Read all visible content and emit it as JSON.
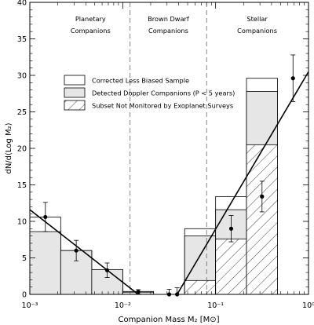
{
  "chart_data": {
    "type": "bar",
    "title": "",
    "xlabel": "Companion Mass M₂ [M⊙]",
    "ylabel": "dN/d(Log M₂)",
    "x_scale": "log",
    "xlim": [
      0.001,
      1
    ],
    "ylim": [
      0,
      40
    ],
    "x_ticks": [
      {
        "value": 0.001,
        "label": "10⁻³"
      },
      {
        "value": 0.01,
        "label": "10⁻²"
      },
      {
        "value": 0.1,
        "label": "10⁻¹"
      },
      {
        "value": 1,
        "label": "10⁰"
      }
    ],
    "y_ticks": [
      0,
      5,
      10,
      15,
      20,
      25,
      30,
      35,
      40
    ],
    "regions": [
      {
        "label_lines": [
          "Planetary",
          "Companions"
        ],
        "x": 0.0045
      },
      {
        "label_lines": [
          "Brown Dwarf",
          "Companions"
        ],
        "x": 0.031
      },
      {
        "label_lines": [
          "Stellar",
          "Companions"
        ],
        "x": 0.28
      }
    ],
    "boundaries": [
      0.012,
      0.08
    ],
    "bins": [
      {
        "x0": 0.001,
        "x1": 0.00215,
        "corrected": 10.6,
        "detected": 8.6,
        "unmonitored": 0
      },
      {
        "x0": 0.00215,
        "x1": 0.00464,
        "corrected": 6.0,
        "detected": 6.0,
        "unmonitored": 0
      },
      {
        "x0": 0.00464,
        "x1": 0.01,
        "corrected": 3.4,
        "detected": 3.4,
        "unmonitored": 0
      },
      {
        "x0": 0.01,
        "x1": 0.0215,
        "corrected": 0.4,
        "detected": 0.3,
        "unmonitored": 0
      },
      {
        "x0": 0.0215,
        "x1": 0.0464,
        "corrected": 0,
        "detected": 0,
        "unmonitored": 0
      },
      {
        "x0": 0.0464,
        "x1": 0.1,
        "corrected": 9.0,
        "detected": 8.0,
        "unmonitored": 1.9
      },
      {
        "x0": 0.1,
        "x1": 0.215,
        "corrected": 13.4,
        "detected": 11.6,
        "unmonitored": 7.6
      },
      {
        "x0": 0.215,
        "x1": 0.464,
        "corrected": 29.6,
        "detected": 27.8,
        "unmonitored": 20.5
      }
    ],
    "points": [
      {
        "x": 0.00147,
        "y": 10.6,
        "err": 2.0
      },
      {
        "x": 0.00316,
        "y": 6.0,
        "err": 1.4
      },
      {
        "x": 0.0068,
        "y": 3.3,
        "err": 1.0
      },
      {
        "x": 0.0147,
        "y": 0.35,
        "err": 0.3
      },
      {
        "x": 0.0316,
        "y": 0.0,
        "err": 0.7
      },
      {
        "x": 0.0385,
        "y": 0.0,
        "err": 0.9
      },
      {
        "x": 0.147,
        "y": 9.0,
        "err": 1.8
      },
      {
        "x": 0.316,
        "y": 13.4,
        "err": 2.1
      },
      {
        "x": 0.681,
        "y": 29.6,
        "err": 3.2
      }
    ],
    "fit_lines": [
      {
        "x": [
          0.001,
          0.0147
        ],
        "y": [
          11.6,
          0.0
        ]
      },
      {
        "x": [
          0.0385,
          1.0
        ],
        "y": [
          0.0,
          30.5
        ]
      }
    ],
    "legend": {
      "placement": "upper-middle",
      "entries": [
        {
          "label": "Corrected Less Biased Sample",
          "style": "open"
        },
        {
          "label": "Detected Doppler Companions (P < 5 years)",
          "style": "gray"
        },
        {
          "label": "Subset Not Monitored by Exoplanet Surveys",
          "style": "hatched"
        }
      ]
    }
  }
}
